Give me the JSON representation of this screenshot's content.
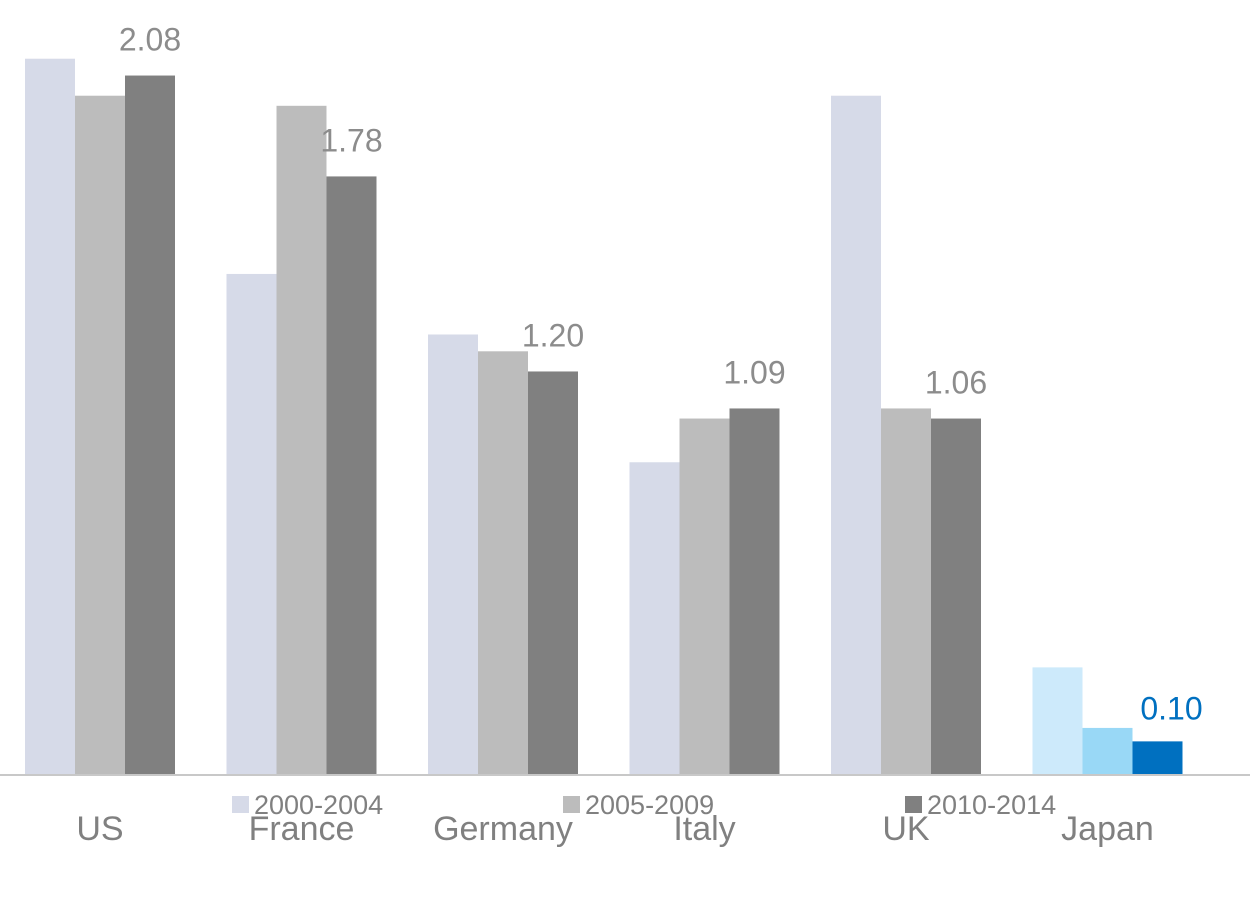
{
  "chart_data": {
    "type": "bar",
    "categories": [
      "US",
      "France",
      "Germany",
      "Italy",
      "UK",
      "Japan"
    ],
    "series": [
      {
        "name": "2000-2004",
        "values": [
          2.13,
          1.49,
          1.31,
          0.93,
          2.02,
          0.32
        ]
      },
      {
        "name": "2005-2009",
        "values": [
          2.02,
          1.99,
          1.26,
          1.06,
          1.09,
          0.14
        ]
      },
      {
        "name": "2010-2014",
        "values": [
          2.08,
          1.78,
          1.2,
          1.09,
          1.06,
          0.1
        ]
      }
    ],
    "data_labels": [
      {
        "category": "US",
        "text": "2.08"
      },
      {
        "category": "France",
        "text": "1.78"
      },
      {
        "category": "Germany",
        "text": "1.20"
      },
      {
        "category": "Italy",
        "text": "1.09"
      },
      {
        "category": "UK",
        "text": "1.06"
      },
      {
        "category": "Japan",
        "text": "0.10",
        "highlight": true
      }
    ],
    "ylim": [
      0,
      2.15
    ],
    "grid": false,
    "legend_position": "bottom",
    "colors": {
      "series": [
        "#d6dae8",
        "#bcbcbc",
        "#808080"
      ],
      "highlight_series": [
        "#cdeafb",
        "#99d8f6",
        "#0070c0"
      ],
      "highlight_label": "#0070c0",
      "baseline": "#c8c8c8"
    }
  }
}
